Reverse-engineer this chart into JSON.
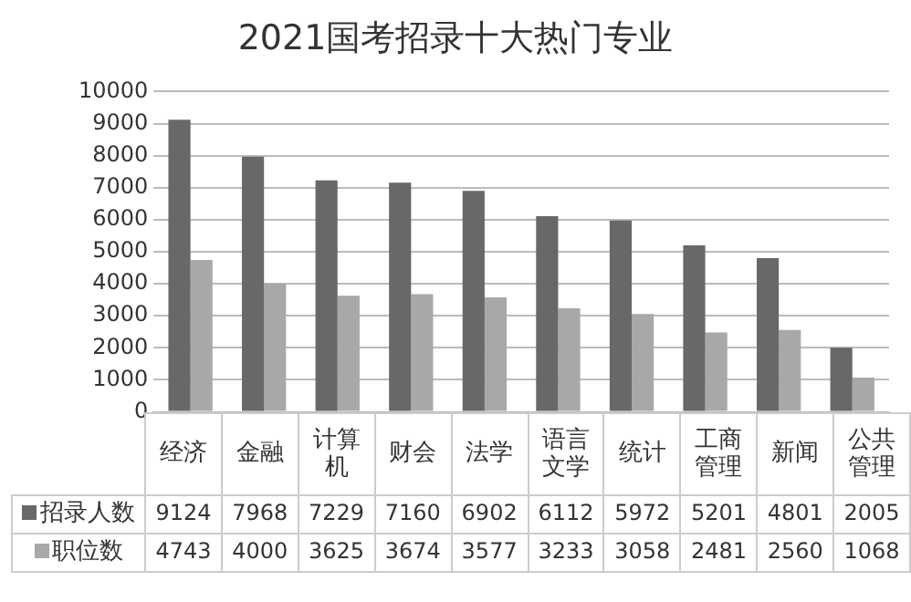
{
  "chart_data": {
    "type": "bar",
    "title": "2021国考招录十大热门专业",
    "categories": [
      "经济",
      "金融",
      "计算机",
      "财会",
      "法学",
      "语言文学",
      "统计",
      "工商管理",
      "新闻",
      "公共管理"
    ],
    "series": [
      {
        "name": "招录人数",
        "color": "#686868",
        "values": [
          9124,
          7968,
          7229,
          7160,
          6902,
          6112,
          5972,
          5201,
          4801,
          2005
        ]
      },
      {
        "name": "职位数",
        "color": "#a8a8a8",
        "values": [
          4743,
          4000,
          3625,
          3674,
          3577,
          3233,
          3058,
          2481,
          2560,
          1068
        ]
      }
    ],
    "ylim": [
      0,
      10000
    ],
    "yticks": [
      0,
      1000,
      2000,
      3000,
      4000,
      5000,
      6000,
      7000,
      8000,
      9000,
      10000
    ],
    "grid": "y",
    "legend": "bottom",
    "data_labels": true
  }
}
